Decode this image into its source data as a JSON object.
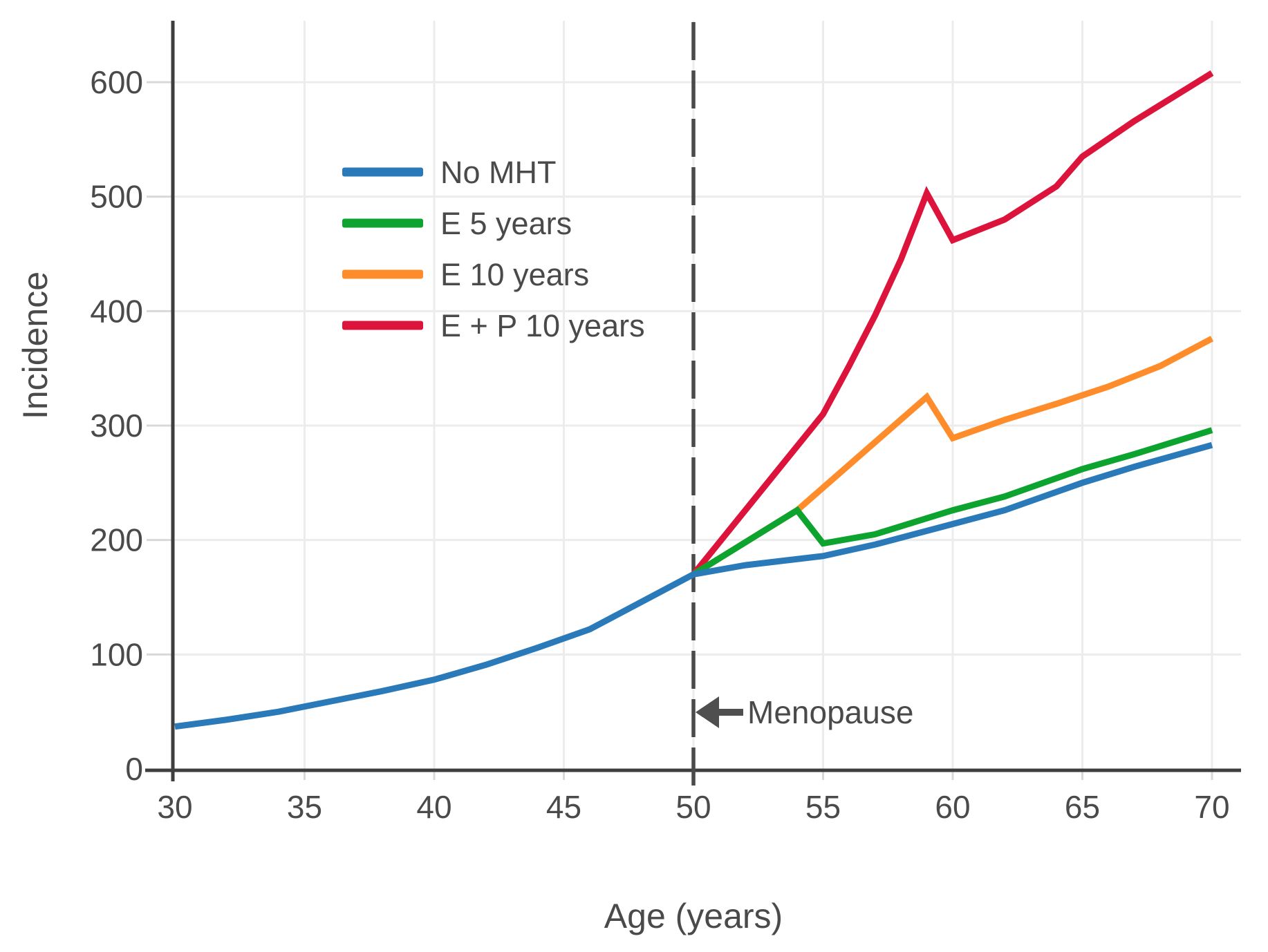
{
  "chart_data": {
    "type": "line",
    "title": "",
    "xlabel": "Age (years)",
    "ylabel": "Incidence",
    "x_ticks": [
      30,
      35,
      40,
      45,
      50,
      55,
      60,
      65,
      70
    ],
    "y_ticks": [
      0,
      100,
      200,
      300,
      400,
      500,
      600
    ],
    "xlim": [
      29.9,
      71.1
    ],
    "ylim": [
      0,
      654
    ],
    "grid": true,
    "legend_position": "upper-left-inside",
    "vline": {
      "x": 50,
      "style": "dashed",
      "color": "#4A4A4A"
    },
    "annotation": {
      "text": "Menopause",
      "arrow": "left",
      "points_to_x": 50,
      "y_value": 50
    },
    "series": [
      {
        "name": "No MHT",
        "color": "#2A7AB9",
        "x": [
          30,
          32,
          34,
          36,
          38,
          40,
          42,
          44,
          46,
          48,
          50,
          52,
          55,
          57,
          60,
          62,
          65,
          67,
          70
        ],
        "y": [
          37,
          43,
          50,
          59,
          68,
          78,
          91,
          106,
          122,
          146,
          170,
          178,
          186,
          196,
          214,
          226,
          250,
          264,
          283
        ]
      },
      {
        "name": "E 5 years",
        "color": "#0DA32F",
        "x": [
          50,
          54,
          55,
          57,
          60,
          62,
          65,
          67,
          70
        ],
        "y": [
          170,
          226,
          197,
          205,
          226,
          238,
          262,
          275,
          296
        ]
      },
      {
        "name": "E 10 years",
        "color": "#FF8C2A",
        "x": [
          50,
          54,
          59,
          60,
          62,
          64,
          66,
          68,
          70
        ],
        "y": [
          170,
          226,
          325,
          289,
          305,
          319,
          334,
          352,
          376
        ]
      },
      {
        "name": "E + P 10 years",
        "color": "#DC143C",
        "x": [
          50,
          55,
          56,
          57,
          58,
          59,
          60,
          62,
          64,
          65,
          67,
          70
        ],
        "y": [
          170,
          310,
          352,
          396,
          445,
          503,
          462,
          480,
          509,
          535,
          566,
          608
        ]
      }
    ]
  }
}
